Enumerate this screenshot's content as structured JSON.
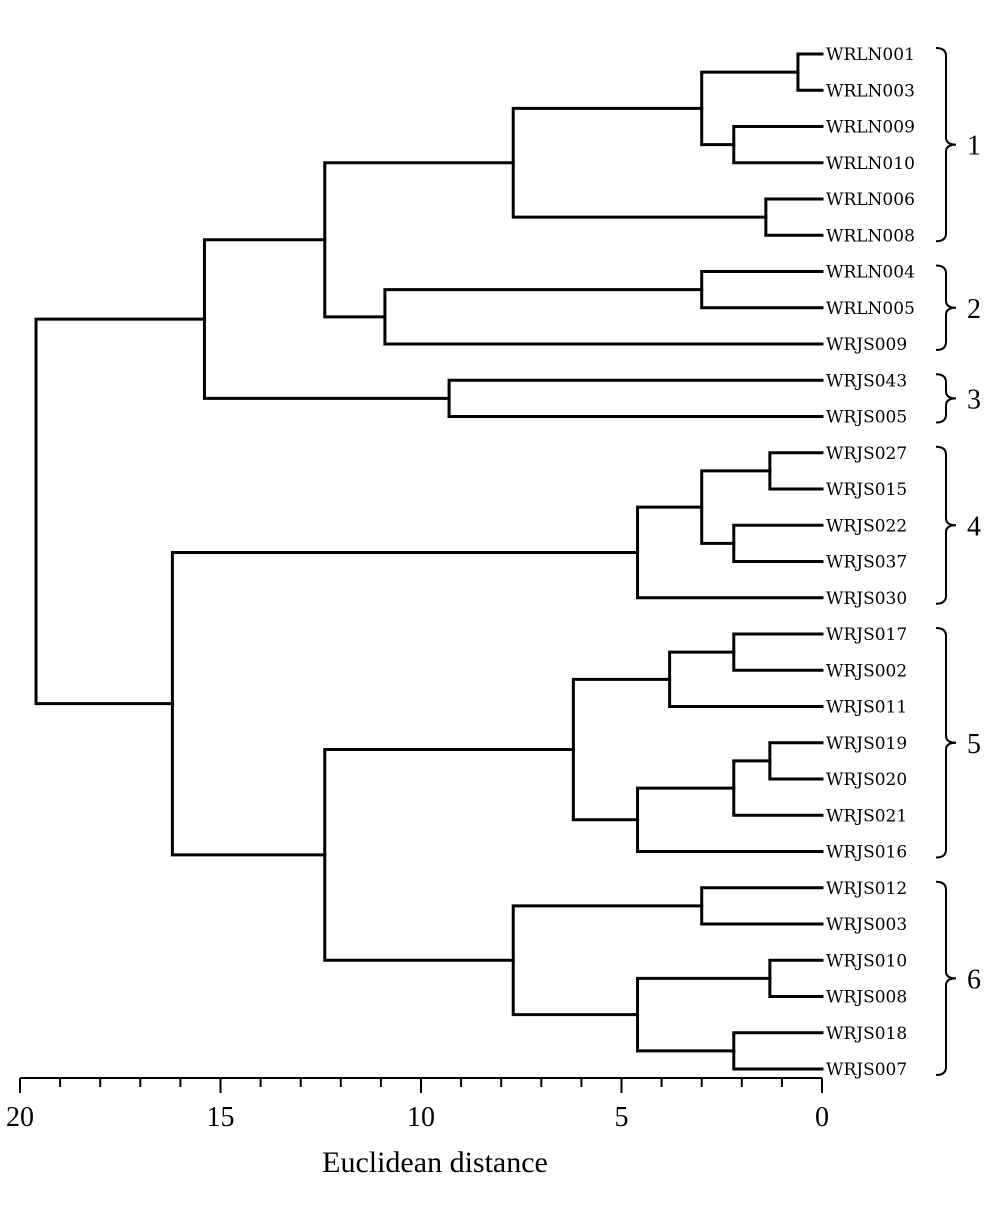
{
  "chart_data": {
    "type": "dendrogram",
    "xlabel": "Euclidean distance",
    "xlim": [
      20,
      0
    ],
    "major_ticks": [
      20,
      15,
      10,
      5,
      0
    ],
    "minor_tick_step": 1,
    "leaves": [
      "WRLN001",
      "WRLN003",
      "WRLN009",
      "WRLN010",
      "WRLN006",
      "WRLN008",
      "WRLN004",
      "WRLN005",
      "WRJS009",
      "WRJS043",
      "WRJS005",
      "WRJS027",
      "WRJS015",
      "WRJS022",
      "WRJS037",
      "WRJS030",
      "WRJS017",
      "WRJS002",
      "WRJS011",
      "WRJS019",
      "WRJS020",
      "WRJS021",
      "WRJS016",
      "WRJS012",
      "WRJS003",
      "WRJS010",
      "WRJS008",
      "WRJS018",
      "WRJS007"
    ],
    "merges": [
      {
        "a": 0,
        "b": 1,
        "height": 0.6
      },
      {
        "a": 2,
        "b": 3,
        "height": 2.2
      },
      {
        "a": 4,
        "b": 5,
        "height": 1.4
      },
      {
        "a": 29,
        "b": 30,
        "height": 3.0
      },
      {
        "a": 32,
        "b": 31,
        "height": 7.7
      },
      {
        "a": 6,
        "b": 7,
        "height": 3.0
      },
      {
        "a": 34,
        "b": 8,
        "height": 10.9
      },
      {
        "a": 33,
        "b": 35,
        "height": 12.4
      },
      {
        "a": 9,
        "b": 10,
        "height": 9.3
      },
      {
        "a": 36,
        "b": 37,
        "height": 15.4
      },
      {
        "a": 11,
        "b": 12,
        "height": 1.3
      },
      {
        "a": 13,
        "b": 14,
        "height": 2.2
      },
      {
        "a": 39,
        "b": 40,
        "height": 3.0
      },
      {
        "a": 41,
        "b": 15,
        "height": 4.6
      },
      {
        "a": 16,
        "b": 17,
        "height": 2.2
      },
      {
        "a": 43,
        "b": 18,
        "height": 3.8
      },
      {
        "a": 19,
        "b": 20,
        "height": 1.3
      },
      {
        "a": 45,
        "b": 21,
        "height": 2.2
      },
      {
        "a": 46,
        "b": 22,
        "height": 4.6
      },
      {
        "a": 44,
        "b": 47,
        "height": 6.2
      },
      {
        "a": 23,
        "b": 24,
        "height": 3.0
      },
      {
        "a": 25,
        "b": 26,
        "height": 1.3
      },
      {
        "a": 27,
        "b": 28,
        "height": 2.2
      },
      {
        "a": 50,
        "b": 51,
        "height": 4.6
      },
      {
        "a": 49,
        "b": 52,
        "height": 7.7
      },
      {
        "a": 48,
        "b": 53,
        "height": 12.4
      },
      {
        "a": 42,
        "b": 54,
        "height": 16.2
      },
      {
        "a": 38,
        "b": 55,
        "height": 19.6
      }
    ],
    "groups": [
      {
        "label": "1",
        "first": 0,
        "last": 5
      },
      {
        "label": "2",
        "first": 6,
        "last": 8
      },
      {
        "label": "3",
        "first": 9,
        "last": 10
      },
      {
        "label": "4",
        "first": 11,
        "last": 15
      },
      {
        "label": "5",
        "first": 16,
        "last": 22
      },
      {
        "label": "6",
        "first": 23,
        "last": 28
      }
    ]
  }
}
